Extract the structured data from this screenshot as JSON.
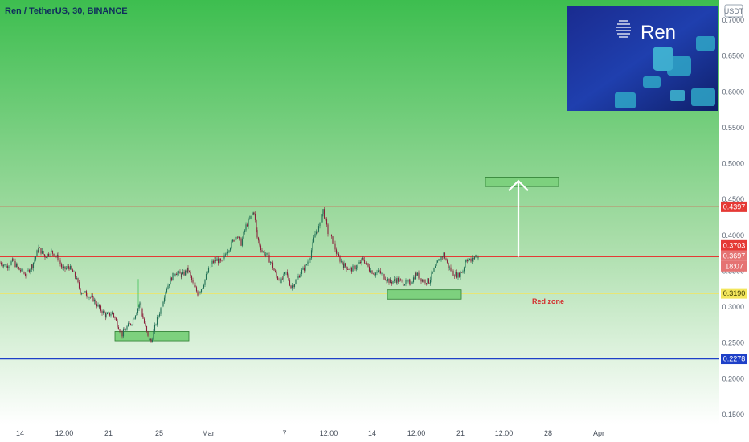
{
  "title": "Ren / TetherUS, 30, BINANCE",
  "currency_badge": "USDT",
  "logo_text": "Ren",
  "annotation_red_zone": "Red zone",
  "colors": {
    "background_top": "#3dbe4f",
    "background_bottom": "#ffffff",
    "candle_up": "#1f6e54",
    "candle_down": "#8a1f3a",
    "resistance_line": "#e53935",
    "support_yellow": "#f3e65c",
    "support_blue": "#1e40c8",
    "zone_fill": "#7dd17e",
    "arrow": "#ffffff"
  },
  "chart_data": {
    "type": "candlestick",
    "ylim": [
      0.14,
      0.71
    ],
    "y_ticks": [
      "0.7000",
      "0.6500",
      "0.6000",
      "0.5500",
      "0.5000",
      "0.4500",
      "0.4000",
      "0.3500",
      "0.3000",
      "0.2500",
      "0.2000",
      "0.1500"
    ],
    "x_ticks": [
      "14",
      "12:00",
      "21",
      "25",
      "Mar",
      "7",
      "12:00",
      "14",
      "12:00",
      "21",
      "12:00",
      "28",
      "Apr"
    ],
    "price_labels": [
      {
        "value": "0.4397",
        "color": "#e53935"
      },
      {
        "value": "0.3703",
        "color": "#e53935"
      },
      {
        "value": "0.3697",
        "color": "#e57373"
      },
      {
        "value": "18:07",
        "color": "#e57373"
      },
      {
        "value": "0.3190",
        "color": "#f3e65c"
      },
      {
        "value": "0.2278",
        "color": "#1e40c8"
      }
    ],
    "horizontal_lines": [
      {
        "name": "resistance",
        "value": 0.4397,
        "color": "#e53935"
      },
      {
        "name": "mid-resistance",
        "value": 0.3703,
        "color": "#e53935"
      },
      {
        "name": "support",
        "value": 0.319,
        "color": "#f3e65c"
      },
      {
        "name": "major-support",
        "value": 0.2278,
        "color": "#1e40c8"
      }
    ],
    "zones": [
      {
        "name": "zone-low",
        "t0": 143,
        "t1": 235,
        "low": 0.253,
        "high": 0.266
      },
      {
        "name": "zone-mid",
        "t0": 482,
        "t1": 574,
        "low": 0.311,
        "high": 0.324
      },
      {
        "name": "zone-target",
        "t0": 604,
        "t1": 695,
        "low": 0.468,
        "high": 0.481
      }
    ],
    "arrow": {
      "t": 645,
      "from": 0.37,
      "to": 0.478
    },
    "t_range": [
      0,
      895
    ],
    "price_path": [
      [
        0,
        0.362
      ],
      [
        8,
        0.357
      ],
      [
        16,
        0.364
      ],
      [
        24,
        0.352
      ],
      [
        32,
        0.345
      ],
      [
        40,
        0.358
      ],
      [
        48,
        0.382
      ],
      [
        56,
        0.371
      ],
      [
        64,
        0.377
      ],
      [
        72,
        0.369
      ],
      [
        78,
        0.352
      ],
      [
        86,
        0.356
      ],
      [
        94,
        0.342
      ],
      [
        100,
        0.322
      ],
      [
        108,
        0.318
      ],
      [
        116,
        0.311
      ],
      [
        124,
        0.298
      ],
      [
        132,
        0.288
      ],
      [
        140,
        0.292
      ],
      [
        146,
        0.276
      ],
      [
        152,
        0.262
      ],
      [
        158,
        0.272
      ],
      [
        164,
        0.279
      ],
      [
        170,
        0.295
      ],
      [
        174,
        0.305
      ],
      [
        178,
        0.284
      ],
      [
        184,
        0.258
      ],
      [
        188,
        0.252
      ],
      [
        194,
        0.278
      ],
      [
        200,
        0.298
      ],
      [
        206,
        0.323
      ],
      [
        212,
        0.338
      ],
      [
        218,
        0.349
      ],
      [
        226,
        0.344
      ],
      [
        234,
        0.352
      ],
      [
        240,
        0.332
      ],
      [
        246,
        0.319
      ],
      [
        252,
        0.329
      ],
      [
        258,
        0.348
      ],
      [
        264,
        0.362
      ],
      [
        270,
        0.366
      ],
      [
        276,
        0.361
      ],
      [
        282,
        0.378
      ],
      [
        288,
        0.388
      ],
      [
        294,
        0.401
      ],
      [
        300,
        0.389
      ],
      [
        306,
        0.413
      ],
      [
        312,
        0.425
      ],
      [
        316,
        0.433
      ],
      [
        320,
        0.397
      ],
      [
        326,
        0.378
      ],
      [
        332,
        0.372
      ],
      [
        338,
        0.36
      ],
      [
        344,
        0.342
      ],
      [
        350,
        0.336
      ],
      [
        356,
        0.348
      ],
      [
        362,
        0.328
      ],
      [
        368,
        0.336
      ],
      [
        374,
        0.348
      ],
      [
        380,
        0.356
      ],
      [
        386,
        0.372
      ],
      [
        392,
        0.402
      ],
      [
        398,
        0.414
      ],
      [
        402,
        0.435
      ],
      [
        408,
        0.404
      ],
      [
        414,
        0.392
      ],
      [
        420,
        0.371
      ],
      [
        428,
        0.358
      ],
      [
        436,
        0.352
      ],
      [
        444,
        0.357
      ],
      [
        452,
        0.367
      ],
      [
        460,
        0.352
      ],
      [
        466,
        0.347
      ],
      [
        472,
        0.349
      ],
      [
        478,
        0.342
      ],
      [
        486,
        0.335
      ],
      [
        494,
        0.338
      ],
      [
        502,
        0.334
      ],
      [
        510,
        0.333
      ],
      [
        518,
        0.346
      ],
      [
        526,
        0.337
      ],
      [
        534,
        0.336
      ],
      [
        540,
        0.352
      ],
      [
        546,
        0.365
      ],
      [
        552,
        0.374
      ],
      [
        558,
        0.356
      ],
      [
        564,
        0.347
      ],
      [
        570,
        0.344
      ],
      [
        576,
        0.351
      ],
      [
        580,
        0.368
      ],
      [
        586,
        0.364
      ],
      [
        592,
        0.372
      ],
      [
        596,
        0.369
      ]
    ]
  }
}
